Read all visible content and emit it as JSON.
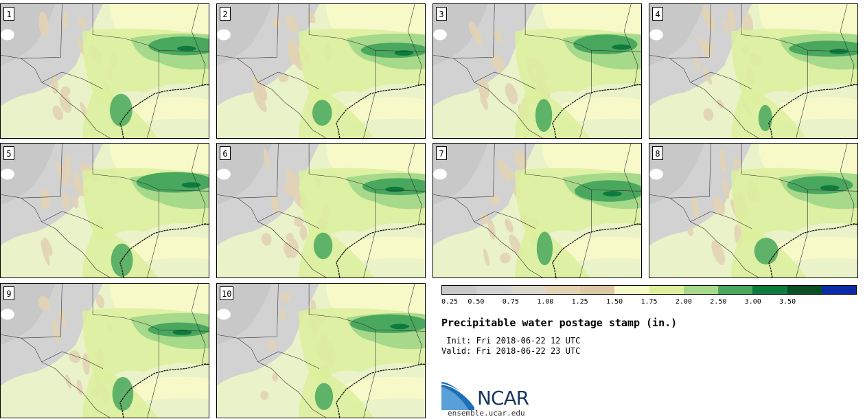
{
  "members": [
    "1",
    "2",
    "3",
    "4",
    "5",
    "6",
    "7",
    "8",
    "9",
    "10"
  ],
  "legend": {
    "thresholds": [
      "0.25",
      "0.50",
      "0.75",
      "1.00",
      "1.25",
      "1.50",
      "1.75",
      "2.00",
      "2.50",
      "3.00",
      "3.50"
    ],
    "colors": [
      "#c8c8c8",
      "#d2d2d2",
      "#dcd7cc",
      "#e2d3b4",
      "#dcc8a4",
      "#f7f9c8",
      "#dcf09c",
      "#a6d98a",
      "#49a85e",
      "#0e7a3d",
      "#0a4e25",
      "#0b2aa6"
    ]
  },
  "title": "Precipitable water postage stamp (in.)",
  "init_line": " Init: Fri 2018-06-22 12 UTC",
  "valid_line": "Valid: Fri 2018-06-22 23 UTC",
  "logo": {
    "name": "ncar-logo",
    "text": "NCAR"
  },
  "site": "ensemble.ucar.edu"
}
